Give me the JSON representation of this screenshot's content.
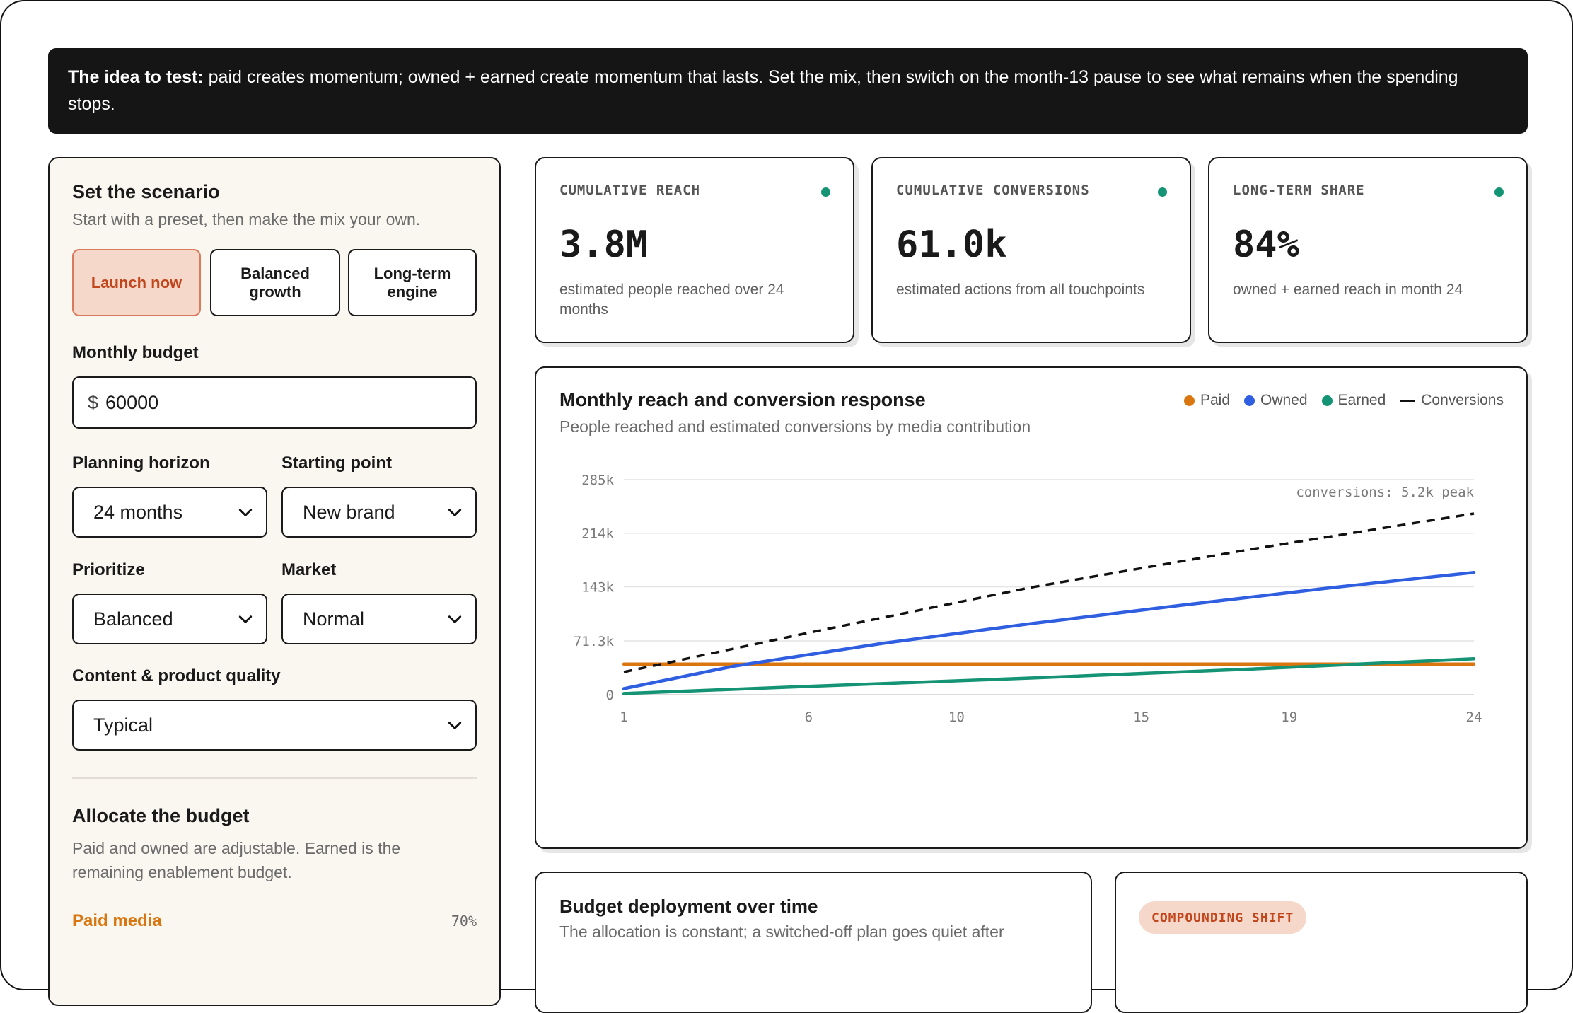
{
  "banner": {
    "lead": "The idea to test:",
    "text": "paid creates momentum; owned + earned create momentum that lasts. Set the mix, then switch on the month-13 pause to see what remains when the spending stops."
  },
  "scenario": {
    "title": "Set the scenario",
    "subtitle": "Start with a preset, then make the mix your own.",
    "presets": [
      {
        "label": "Launch now",
        "active": true
      },
      {
        "label": "Balanced growth",
        "active": false
      },
      {
        "label": "Long-term engine",
        "active": false
      }
    ],
    "budget": {
      "label": "Monthly budget",
      "currency": "$",
      "value": "60000"
    },
    "horizon": {
      "label": "Planning horizon",
      "value": "24 months"
    },
    "starting": {
      "label": "Starting point",
      "value": "New brand"
    },
    "prioritize": {
      "label": "Prioritize",
      "value": "Balanced"
    },
    "market": {
      "label": "Market",
      "value": "Normal"
    },
    "quality": {
      "label": "Content & product quality",
      "value": "Typical"
    },
    "allocate": {
      "title": "Allocate the budget",
      "subtitle": "Paid and owned are adjustable. Earned is the remaining enablement budget.",
      "paid_label": "Paid media",
      "paid_pct": "70%"
    }
  },
  "kpis": [
    {
      "title": "CUMULATIVE REACH",
      "value": "3.8M",
      "desc": "estimated people reached over 24 months"
    },
    {
      "title": "CUMULATIVE CONVERSIONS",
      "value": "61.0k",
      "desc": "estimated actions from all touchpoints"
    },
    {
      "title": "LONG-TERM SHARE",
      "value": "84%",
      "desc": "owned + earned reach in month 24"
    }
  ],
  "chart_card": {
    "title": "Monthly reach and conversion response",
    "subtitle": "People reached and estimated conversions by media contribution",
    "annotation": "conversions: 5.2k peak"
  },
  "legend": [
    {
      "name": "Paid",
      "color": "#d9760f",
      "style": "dot"
    },
    {
      "name": "Owned",
      "color": "#2f5fe0",
      "style": "dot"
    },
    {
      "name": "Earned",
      "color": "#149474",
      "style": "dot"
    },
    {
      "name": "Conversions",
      "color": "#111111",
      "style": "dash"
    }
  ],
  "chart_data": {
    "type": "line",
    "x_ticks": [
      "1",
      "6",
      "10",
      "15",
      "19",
      "24"
    ],
    "y_ticks": [
      "0",
      "71.3k",
      "143k",
      "214k",
      "285k"
    ],
    "xlim": [
      1,
      24
    ],
    "ylim": [
      0,
      285000
    ],
    "grid": true,
    "legend_position": "top-right",
    "series": [
      {
        "name": "Paid",
        "color": "#d9760f",
        "dashed": false,
        "x": [
          1,
          24
        ],
        "y": [
          40500,
          40500
        ]
      },
      {
        "name": "Owned",
        "color": "#2f5fe0",
        "dashed": false,
        "x": [
          1,
          4,
          8,
          12,
          16,
          20,
          24
        ],
        "y": [
          8000,
          38000,
          68000,
          94000,
          118000,
          141000,
          162000
        ]
      },
      {
        "name": "Earned",
        "color": "#149474",
        "dashed": false,
        "x": [
          1,
          6,
          12,
          18,
          24
        ],
        "y": [
          1500,
          11000,
          22000,
          34000,
          47500
        ]
      },
      {
        "name": "Conversions",
        "color": "#111111",
        "dashed": true,
        "x": [
          1,
          6,
          12,
          18,
          24
        ],
        "y": [
          30000,
          82000,
          142000,
          193000,
          240000
        ]
      }
    ]
  },
  "deploy_card": {
    "title": "Budget deployment over time",
    "subtitle": "The allocation is constant; a switched-off plan goes quiet after"
  },
  "shift_card": {
    "badge": "COMPOUNDING SHIFT"
  }
}
